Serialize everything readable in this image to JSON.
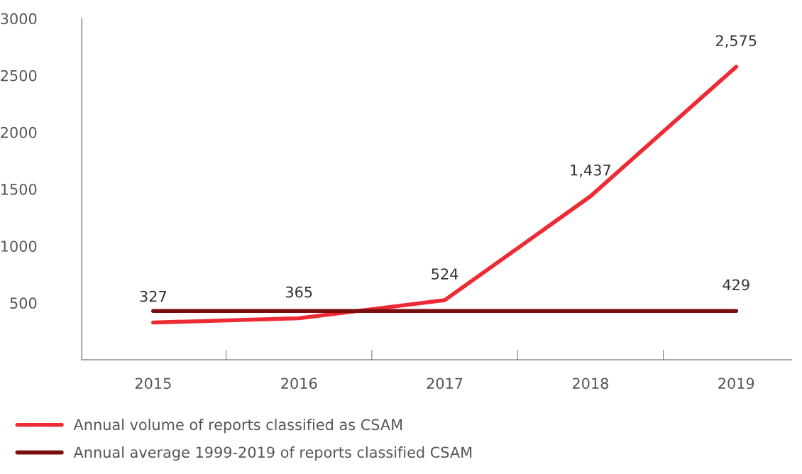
{
  "chart_data": {
    "type": "line",
    "categories": [
      "2015",
      "2016",
      "2017",
      "2018",
      "2019"
    ],
    "series": [
      {
        "name": "Annual volume of reports classified as CSAM",
        "color": "#ee2b34",
        "values": [
          327,
          365,
          524,
          1437,
          2575
        ],
        "value_labels": [
          "327",
          "365",
          "524",
          "1,437",
          "2,575"
        ]
      },
      {
        "name": "Annual average 1999-2019 of reports classified CSAM",
        "color": "#7a0d0d",
        "values": [
          429,
          429,
          429,
          429,
          429
        ],
        "value_labels": [
          null,
          null,
          null,
          null,
          "429"
        ]
      }
    ],
    "ylim": [
      0,
      3000
    ],
    "yticks": [
      500,
      1000,
      1500,
      2000,
      2500,
      3000
    ],
    "grid": false,
    "legend": "bottom",
    "marker": "none",
    "line_style": "solid"
  }
}
